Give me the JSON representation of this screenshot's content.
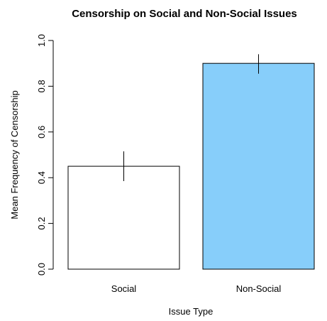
{
  "chart_data": {
    "type": "bar",
    "title": "Censorship on Social and Non-Social Issues",
    "xlabel": "Issue Type",
    "ylabel": "Mean Frequency of Censorship",
    "categories": [
      "Social",
      "Non-Social"
    ],
    "values": [
      0.45,
      0.9
    ],
    "error_bars": [
      {
        "low": 0.385,
        "high": 0.515
      },
      {
        "low": 0.855,
        "high": 0.94
      }
    ],
    "bar_colors": [
      "#ffffff",
      "#87cefa"
    ],
    "ylim": [
      0,
      1.0
    ],
    "yticks": [
      "0.0",
      "0.2",
      "0.4",
      "0.6",
      "0.8",
      "1.0"
    ],
    "grid": false,
    "legend": "none"
  }
}
